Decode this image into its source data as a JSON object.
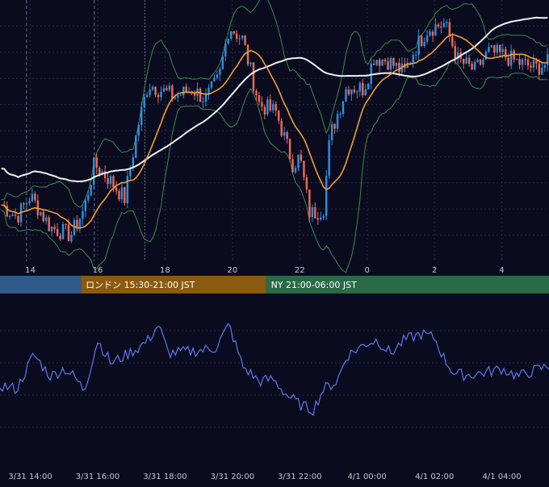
{
  "chart_data": {
    "type": "candlestick",
    "price_panel": {
      "x_tick_labels": [
        "14",
        "16",
        "18",
        "20",
        "22",
        "0",
        "2",
        "4"
      ],
      "x_tick_hours": [
        14,
        16,
        18,
        20,
        22,
        24,
        26,
        28
      ],
      "x_range_hours": [
        13.1,
        29.4
      ],
      "vertical_markers_hours": [
        13.0,
        15.9,
        17.4
      ],
      "reference_line_level": 0.72,
      "candles_anchor_path": [
        [
          13.1,
          0.22
        ],
        [
          13.6,
          0.17
        ],
        [
          14.0,
          0.25
        ],
        [
          14.6,
          0.13
        ],
        [
          15.2,
          0.1
        ],
        [
          15.6,
          0.2
        ],
        [
          15.9,
          0.37
        ],
        [
          16.3,
          0.32
        ],
        [
          16.8,
          0.24
        ],
        [
          17.2,
          0.52
        ],
        [
          17.5,
          0.68
        ],
        [
          17.8,
          0.66
        ],
        [
          18.3,
          0.63
        ],
        [
          18.8,
          0.66
        ],
        [
          19.2,
          0.62
        ],
        [
          19.6,
          0.7
        ],
        [
          19.9,
          0.9
        ],
        [
          20.3,
          0.85
        ],
        [
          20.8,
          0.6
        ],
        [
          21.3,
          0.57
        ],
        [
          21.5,
          0.49
        ],
        [
          21.8,
          0.37
        ],
        [
          22.0,
          0.4
        ],
        [
          22.3,
          0.18
        ],
        [
          22.7,
          0.2
        ],
        [
          22.9,
          0.48
        ],
        [
          23.4,
          0.67
        ],
        [
          23.9,
          0.66
        ],
        [
          24.2,
          0.78
        ],
        [
          24.6,
          0.77
        ],
        [
          25.1,
          0.72
        ],
        [
          25.4,
          0.81
        ],
        [
          25.8,
          0.89
        ],
        [
          26.3,
          0.91
        ],
        [
          26.7,
          0.77
        ],
        [
          27.2,
          0.73
        ],
        [
          27.6,
          0.8
        ],
        [
          28.0,
          0.79
        ],
        [
          28.5,
          0.76
        ],
        [
          29.0,
          0.74
        ],
        [
          29.4,
          0.76
        ]
      ],
      "colors": {
        "up_candle": "#2f8fe0",
        "down_candle": "#ef6a55",
        "ma_short": "#f0a030",
        "ma_long": "#f2f2f2",
        "bollinger": "#3e8a4a",
        "grid": "#2a2d48",
        "markers": "#6a6e88",
        "reference_line": "#9a9a9a",
        "tick_label": "#c8c8d0"
      }
    },
    "sessions": [
      {
        "label": "",
        "color": "#2d5a8a",
        "from_hours": 11.0,
        "to_hours": 15.5
      },
      {
        "label": "ロンドン 15:30-21:00 JST",
        "color": "#8a5a10",
        "from_hours": 15.5,
        "to_hours": 21.0
      },
      {
        "label": "NY 21:00-06:00 JST",
        "color": "#2a6a48",
        "from_hours": 21.0,
        "to_hours": 30.0
      }
    ],
    "oscillator_panel": {
      "line_color": "#5f78ee",
      "anchor_path": [
        [
          13.1,
          0.45
        ],
        [
          13.6,
          0.42
        ],
        [
          14.1,
          0.69
        ],
        [
          14.6,
          0.52
        ],
        [
          15.0,
          0.58
        ],
        [
          15.3,
          0.52
        ],
        [
          15.6,
          0.41
        ],
        [
          16.0,
          0.8
        ],
        [
          16.4,
          0.62
        ],
        [
          16.8,
          0.68
        ],
        [
          17.2,
          0.74
        ],
        [
          17.5,
          0.8
        ],
        [
          17.8,
          0.92
        ],
        [
          18.1,
          0.7
        ],
        [
          18.6,
          0.71
        ],
        [
          19.0,
          0.72
        ],
        [
          19.5,
          0.74
        ],
        [
          19.9,
          0.92
        ],
        [
          20.3,
          0.6
        ],
        [
          20.8,
          0.48
        ],
        [
          21.2,
          0.5
        ],
        [
          21.6,
          0.38
        ],
        [
          22.0,
          0.3
        ],
        [
          22.4,
          0.26
        ],
        [
          22.7,
          0.42
        ],
        [
          23.1,
          0.48
        ],
        [
          23.4,
          0.68
        ],
        [
          24.0,
          0.78
        ],
        [
          24.3,
          0.8
        ],
        [
          24.7,
          0.7
        ],
        [
          25.1,
          0.8
        ],
        [
          25.6,
          0.85
        ],
        [
          26.0,
          0.82
        ],
        [
          26.3,
          0.65
        ],
        [
          26.6,
          0.54
        ],
        [
          27.0,
          0.53
        ],
        [
          27.5,
          0.55
        ],
        [
          28.0,
          0.58
        ],
        [
          28.5,
          0.52
        ],
        [
          29.0,
          0.57
        ],
        [
          29.4,
          0.6
        ]
      ],
      "grid_dash": true
    },
    "bottom_axis": {
      "labels": [
        "3/31 14:00",
        "3/31 16:00",
        "3/31 18:00",
        "3/31 20:00",
        "3/31 22:00",
        "4/1 00:00",
        "4/1 02:00",
        "4/1 04:00"
      ],
      "hours": [
        14,
        16,
        18,
        20,
        22,
        24,
        26,
        28
      ]
    }
  }
}
